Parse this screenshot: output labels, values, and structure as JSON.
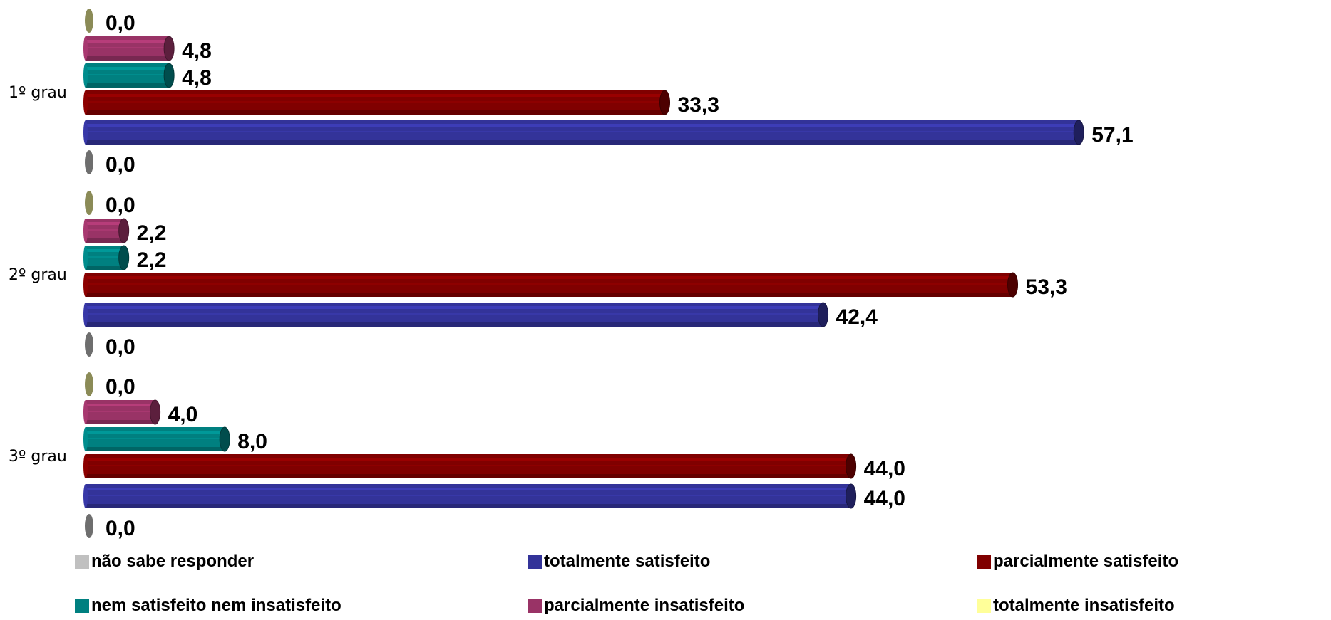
{
  "chart_data": {
    "type": "bar",
    "orientation": "horizontal",
    "categories": [
      "1º grau",
      "2º grau",
      "3º grau"
    ],
    "series": [
      {
        "name": "totalmente insatisfeito",
        "color": "#8B8B57",
        "legend_color": "#FFFF99",
        "values": [
          0.0,
          0.0,
          0.0
        ],
        "labels": [
          "0,0",
          "0,0",
          "0,0"
        ]
      },
      {
        "name": "parcialmente insatisfeito",
        "color": "#993366",
        "values": [
          4.8,
          2.2,
          4.0
        ],
        "labels": [
          "4,8",
          "2,2",
          "4,0"
        ]
      },
      {
        "name": "nem satisfeito nem insatisfeito",
        "color": "#008080",
        "values": [
          4.8,
          2.2,
          8.0
        ],
        "labels": [
          "4,8",
          "2,2",
          "8,0"
        ]
      },
      {
        "name": "parcialmente satisfeito",
        "color": "#800000",
        "values": [
          33.3,
          53.3,
          44.0
        ],
        "labels": [
          "33,3",
          "53,3",
          "44,0"
        ]
      },
      {
        "name": "totalmente satisfeito",
        "color": "#333399",
        "values": [
          57.1,
          42.4,
          44.0
        ],
        "labels": [
          "57,1",
          "42,4",
          "44,0"
        ]
      },
      {
        "name": "não sabe responder",
        "color": "#6E6E6E",
        "legend_color": "#C0C0C0",
        "values": [
          0.0,
          0.0,
          0.0
        ],
        "labels": [
          "0,0",
          "0,0",
          "0,0"
        ]
      }
    ],
    "legend": {
      "position": "bottom",
      "order": [
        "não sabe responder",
        "totalmente satisfeito",
        "parcialmente satisfeito",
        "nem satisfeito nem insatisfeito",
        "parcialmente insatisfeito",
        "totalmente insatisfeito"
      ]
    },
    "grid": false,
    "xlim": [
      0,
      60
    ]
  }
}
